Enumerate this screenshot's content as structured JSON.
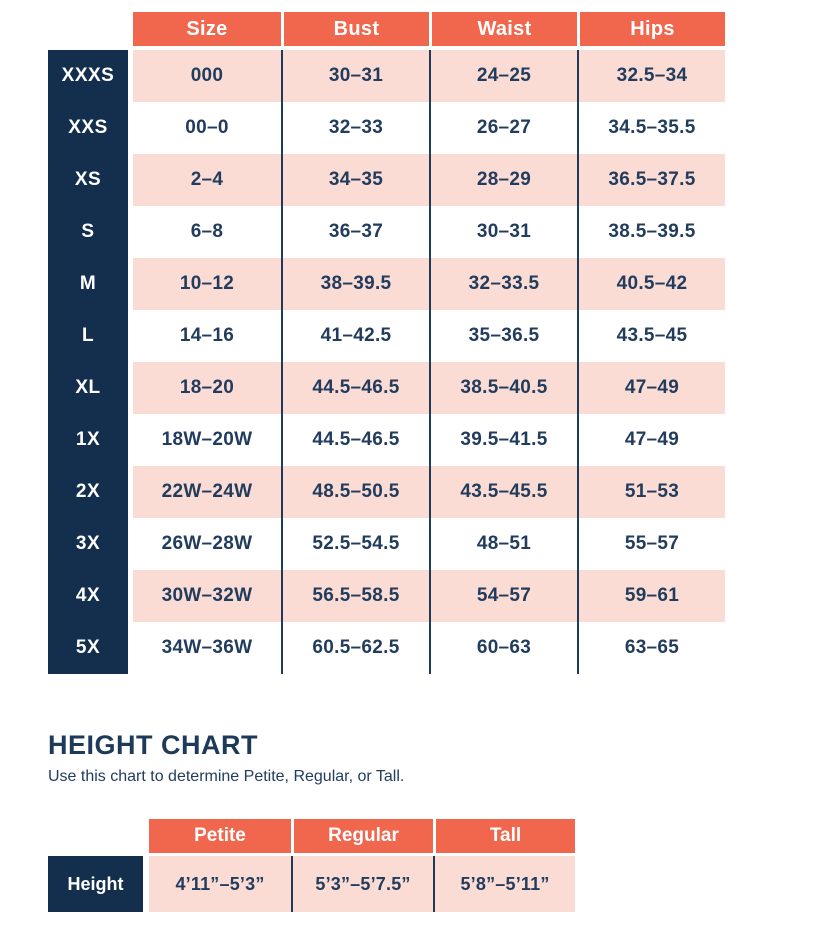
{
  "colors": {
    "header_orange": "#F0674E",
    "label_navy": "#132F4D",
    "stripe_pink": "#FBDCD4",
    "text_navy": "#223C5E",
    "divider_navy": "#1E3A59",
    "header_text": "#FFFFFF"
  },
  "chart_data": [
    {
      "type": "table",
      "name": "size_chart",
      "columns": [
        "Size",
        "Bust",
        "Waist",
        "Hips"
      ],
      "rows": [
        {
          "label": "XXXS",
          "values": [
            "000",
            "30–31",
            "24–25",
            "32.5–34"
          ]
        },
        {
          "label": "XXS",
          "values": [
            "00–0",
            "32–33",
            "26–27",
            "34.5–35.5"
          ]
        },
        {
          "label": "XS",
          "values": [
            "2–4",
            "34–35",
            "28–29",
            "36.5–37.5"
          ]
        },
        {
          "label": "S",
          "values": [
            "6–8",
            "36–37",
            "30–31",
            "38.5–39.5"
          ]
        },
        {
          "label": "M",
          "values": [
            "10–12",
            "38–39.5",
            "32–33.5",
            "40.5–42"
          ]
        },
        {
          "label": "L",
          "values": [
            "14–16",
            "41–42.5",
            "35–36.5",
            "43.5–45"
          ]
        },
        {
          "label": "XL",
          "values": [
            "18–20",
            "44.5–46.5",
            "38.5–40.5",
            "47–49"
          ]
        },
        {
          "label": "1X",
          "values": [
            "18W–20W",
            "44.5–46.5",
            "39.5–41.5",
            "47–49"
          ]
        },
        {
          "label": "2X",
          "values": [
            "22W–24W",
            "48.5–50.5",
            "43.5–45.5",
            "51–53"
          ]
        },
        {
          "label": "3X",
          "values": [
            "26W–28W",
            "52.5–54.5",
            "48–51",
            "55–57"
          ]
        },
        {
          "label": "4X",
          "values": [
            "30W–32W",
            "56.5–58.5",
            "54–57",
            "59–61"
          ]
        },
        {
          "label": "5X",
          "values": [
            "34W–36W",
            "60.5–62.5",
            "60–63",
            "63–65"
          ]
        }
      ]
    },
    {
      "type": "table",
      "name": "height_chart",
      "title": "HEIGHT CHART",
      "subtitle": "Use this chart to determine Petite, Regular, or Tall.",
      "columns": [
        "Petite",
        "Regular",
        "Tall"
      ],
      "row_label": "Height",
      "values": [
        "4’11”–5’3”",
        "5’3”–5’7.5”",
        "5’8”–5’11”"
      ]
    }
  ]
}
